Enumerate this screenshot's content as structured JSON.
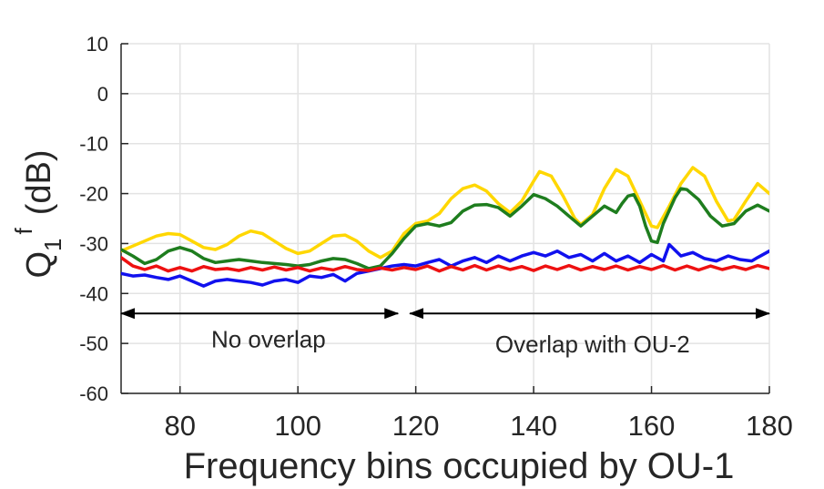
{
  "chart_data": {
    "type": "line",
    "title": "",
    "xlabel": "Frequency bins occupied by OU-1",
    "ylabel": {
      "main": "Q",
      "sub": "1",
      "sup": "f",
      "unit": "(dB)"
    },
    "xlim": [
      70,
      180
    ],
    "ylim": [
      -60,
      10
    ],
    "xticks": [
      80,
      100,
      120,
      140,
      160,
      180
    ],
    "yticks": [
      10,
      0,
      -10,
      -20,
      -30,
      -40,
      -50,
      -60
    ],
    "grid": true,
    "annotations": [
      {
        "text": "No overlap",
        "x_from": 70,
        "x_to": 117,
        "y": -44,
        "text_x": 95,
        "text_y": -49
      },
      {
        "text": "Overlap with OU-2",
        "x_from": 119,
        "x_to": 180,
        "y": -44,
        "text_x": 150,
        "text_y": -50
      }
    ],
    "series": [
      {
        "name": "yellow",
        "color": "#FFD700",
        "points": [
          [
            70,
            -31.5
          ],
          [
            72,
            -30.5
          ],
          [
            74,
            -29.5
          ],
          [
            76,
            -28.5
          ],
          [
            78,
            -28
          ],
          [
            80,
            -28.2
          ],
          [
            82,
            -29.5
          ],
          [
            84,
            -30.8
          ],
          [
            86,
            -31.2
          ],
          [
            88,
            -30.2
          ],
          [
            90,
            -28.5
          ],
          [
            92,
            -27.5
          ],
          [
            94,
            -28
          ],
          [
            96,
            -29.5
          ],
          [
            98,
            -31
          ],
          [
            100,
            -32
          ],
          [
            102,
            -31.5
          ],
          [
            104,
            -30
          ],
          [
            106,
            -28.5
          ],
          [
            108,
            -28.3
          ],
          [
            110,
            -29.5
          ],
          [
            112,
            -31.5
          ],
          [
            114,
            -32.8
          ],
          [
            116,
            -31.5
          ],
          [
            118,
            -28
          ],
          [
            120,
            -26
          ],
          [
            122,
            -25.5
          ],
          [
            124,
            -24
          ],
          [
            126,
            -21
          ],
          [
            128,
            -19
          ],
          [
            130,
            -18.3
          ],
          [
            132,
            -19.5
          ],
          [
            134,
            -22
          ],
          [
            136,
            -23.8
          ],
          [
            138,
            -21.5
          ],
          [
            140,
            -17.5
          ],
          [
            141,
            -15.6
          ],
          [
            143,
            -16.5
          ],
          [
            145,
            -20.5
          ],
          [
            147,
            -25
          ],
          [
            148,
            -26.2
          ],
          [
            150,
            -24.2
          ],
          [
            152,
            -19
          ],
          [
            154,
            -15.2
          ],
          [
            156,
            -16.5
          ],
          [
            158,
            -21.5
          ],
          [
            160,
            -26.5
          ],
          [
            161,
            -26.8
          ],
          [
            163,
            -22.5
          ],
          [
            165,
            -18
          ],
          [
            167,
            -14.8
          ],
          [
            169,
            -16.5
          ],
          [
            171,
            -21.5
          ],
          [
            173,
            -25.5
          ],
          [
            174,
            -25.2
          ],
          [
            176,
            -21.5
          ],
          [
            178,
            -18
          ],
          [
            180,
            -20
          ]
        ]
      },
      {
        "name": "green",
        "color": "#1E7D1E",
        "points": [
          [
            70,
            -31.2
          ],
          [
            72,
            -32.5
          ],
          [
            74,
            -34
          ],
          [
            76,
            -33.2
          ],
          [
            78,
            -31.5
          ],
          [
            80,
            -30.8
          ],
          [
            82,
            -31.5
          ],
          [
            84,
            -33
          ],
          [
            86,
            -33.8
          ],
          [
            88,
            -33.5
          ],
          [
            90,
            -33.2
          ],
          [
            92,
            -33.5
          ],
          [
            94,
            -33.8
          ],
          [
            96,
            -34
          ],
          [
            98,
            -34.2
          ],
          [
            100,
            -34.5
          ],
          [
            102,
            -34.2
          ],
          [
            104,
            -33.5
          ],
          [
            106,
            -33
          ],
          [
            108,
            -33.2
          ],
          [
            110,
            -34
          ],
          [
            112,
            -35
          ],
          [
            114,
            -34.5
          ],
          [
            116,
            -32
          ],
          [
            118,
            -29
          ],
          [
            120,
            -26.5
          ],
          [
            122,
            -26
          ],
          [
            124,
            -26.5
          ],
          [
            126,
            -25.8
          ],
          [
            128,
            -23.5
          ],
          [
            130,
            -22.3
          ],
          [
            132,
            -22.2
          ],
          [
            134,
            -22.8
          ],
          [
            136,
            -24.5
          ],
          [
            138,
            -22.5
          ],
          [
            140,
            -20.2
          ],
          [
            142,
            -21
          ],
          [
            144,
            -22.5
          ],
          [
            146,
            -24.5
          ],
          [
            148,
            -26.5
          ],
          [
            150,
            -24.5
          ],
          [
            152,
            -22.5
          ],
          [
            154,
            -23.8
          ],
          [
            155,
            -22
          ],
          [
            156,
            -20.5
          ],
          [
            157,
            -20.2
          ],
          [
            158,
            -22.5
          ],
          [
            159,
            -26.5
          ],
          [
            160,
            -29.5
          ],
          [
            161,
            -29.8
          ],
          [
            162,
            -26
          ],
          [
            164,
            -20.8
          ],
          [
            165,
            -19
          ],
          [
            166,
            -19.2
          ],
          [
            168,
            -21.2
          ],
          [
            170,
            -24.5
          ],
          [
            172,
            -26.5
          ],
          [
            174,
            -26
          ],
          [
            176,
            -23.5
          ],
          [
            178,
            -22.3
          ],
          [
            180,
            -23.5
          ]
        ]
      },
      {
        "name": "blue",
        "color": "#1111EE",
        "points": [
          [
            70,
            -36
          ],
          [
            72,
            -36.5
          ],
          [
            74,
            -36.3
          ],
          [
            76,
            -36.8
          ],
          [
            78,
            -37.2
          ],
          [
            80,
            -36.5
          ],
          [
            82,
            -37.5
          ],
          [
            84,
            -38.5
          ],
          [
            86,
            -37.5
          ],
          [
            88,
            -37.2
          ],
          [
            90,
            -37.5
          ],
          [
            92,
            -37.8
          ],
          [
            94,
            -38.3
          ],
          [
            96,
            -37.5
          ],
          [
            98,
            -37.2
          ],
          [
            100,
            -37.8
          ],
          [
            102,
            -36.5
          ],
          [
            104,
            -36.8
          ],
          [
            106,
            -36.2
          ],
          [
            108,
            -37.5
          ],
          [
            110,
            -36
          ],
          [
            112,
            -35.5
          ],
          [
            114,
            -35
          ],
          [
            116,
            -34.5
          ],
          [
            118,
            -34.2
          ],
          [
            120,
            -34.5
          ],
          [
            122,
            -33.8
          ],
          [
            124,
            -33.2
          ],
          [
            126,
            -34.5
          ],
          [
            128,
            -33.5
          ],
          [
            130,
            -32.8
          ],
          [
            132,
            -33.8
          ],
          [
            134,
            -32.5
          ],
          [
            136,
            -33.5
          ],
          [
            138,
            -32.5
          ],
          [
            140,
            -31.8
          ],
          [
            142,
            -32.5
          ],
          [
            144,
            -31.5
          ],
          [
            146,
            -32.8
          ],
          [
            148,
            -32.2
          ],
          [
            150,
            -33.5
          ],
          [
            152,
            -32
          ],
          [
            154,
            -33.5
          ],
          [
            156,
            -32.5
          ],
          [
            158,
            -33.8
          ],
          [
            160,
            -32.2
          ],
          [
            162,
            -33.5
          ],
          [
            163,
            -30.2
          ],
          [
            165,
            -32.5
          ],
          [
            167,
            -31.8
          ],
          [
            169,
            -33
          ],
          [
            171,
            -33.5
          ],
          [
            173,
            -32.5
          ],
          [
            175,
            -33.2
          ],
          [
            177,
            -33.5
          ],
          [
            178,
            -32.8
          ],
          [
            180,
            -31.5
          ]
        ]
      },
      {
        "name": "red",
        "color": "#EE1111",
        "points": [
          [
            70,
            -32.8
          ],
          [
            72,
            -34.5
          ],
          [
            74,
            -35.2
          ],
          [
            76,
            -34.5
          ],
          [
            78,
            -35.5
          ],
          [
            80,
            -34.8
          ],
          [
            82,
            -35.5
          ],
          [
            84,
            -34.6
          ],
          [
            86,
            -35.2
          ],
          [
            88,
            -35
          ],
          [
            90,
            -35.4
          ],
          [
            92,
            -34.8
          ],
          [
            94,
            -35.3
          ],
          [
            96,
            -34.7
          ],
          [
            98,
            -35.3
          ],
          [
            100,
            -34.8
          ],
          [
            102,
            -35.5
          ],
          [
            104,
            -34.9
          ],
          [
            106,
            -35.3
          ],
          [
            108,
            -34.6
          ],
          [
            110,
            -35.2
          ],
          [
            112,
            -35.4
          ],
          [
            114,
            -34.9
          ],
          [
            116,
            -35.3
          ],
          [
            118,
            -34.8
          ],
          [
            120,
            -35.2
          ],
          [
            122,
            -34.5
          ],
          [
            124,
            -35.5
          ],
          [
            126,
            -34.6
          ],
          [
            128,
            -35.3
          ],
          [
            130,
            -34.4
          ],
          [
            132,
            -35.3
          ],
          [
            134,
            -34.5
          ],
          [
            136,
            -35.2
          ],
          [
            138,
            -34.6
          ],
          [
            140,
            -35.4
          ],
          [
            142,
            -34.5
          ],
          [
            144,
            -35.2
          ],
          [
            146,
            -34.4
          ],
          [
            148,
            -35.3
          ],
          [
            150,
            -34.6
          ],
          [
            152,
            -35.2
          ],
          [
            154,
            -34.5
          ],
          [
            156,
            -35.3
          ],
          [
            158,
            -34.6
          ],
          [
            160,
            -35.2
          ],
          [
            162,
            -34.4
          ],
          [
            164,
            -35.3
          ],
          [
            166,
            -34.5
          ],
          [
            168,
            -35.3
          ],
          [
            170,
            -34.5
          ],
          [
            172,
            -35.2
          ],
          [
            174,
            -34.6
          ],
          [
            176,
            -35.2
          ],
          [
            178,
            -34.4
          ],
          [
            180,
            -35
          ]
        ]
      }
    ]
  }
}
